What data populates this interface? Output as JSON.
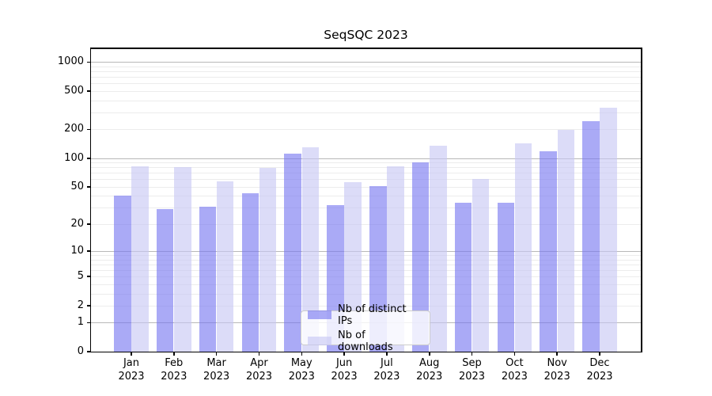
{
  "title": "SeqSQC 2023",
  "chart_data": {
    "type": "bar",
    "title": "SeqSQC 2023",
    "categories": [
      "Jan 2023",
      "Feb 2023",
      "Mar 2023",
      "Apr 2023",
      "May 2023",
      "Jun 2023",
      "Jul 2023",
      "Aug 2023",
      "Sep 2023",
      "Oct 2023",
      "Nov 2023",
      "Dec 2023"
    ],
    "series": [
      {
        "name": "Nb of distinct IPs",
        "color": "rgba(118,118,240,0.62)",
        "values": [
          40,
          29,
          31,
          43,
          112,
          32,
          51,
          91,
          34,
          34,
          119,
          245
        ]
      },
      {
        "name": "Nb of downloads",
        "color": "rgba(199,199,244,0.62)",
        "values": [
          83,
          80,
          57,
          79,
          130,
          56,
          83,
          134,
          61,
          142,
          196,
          337
        ]
      }
    ],
    "xlabel": "",
    "ylabel": "",
    "yscale": "log10(value+1)",
    "yticks": [
      0,
      1,
      2,
      5,
      10,
      20,
      50,
      100,
      200,
      500,
      1000
    ],
    "grid_major": [
      1,
      10,
      100,
      1000
    ],
    "grid_minor_bases": [
      1,
      10,
      100
    ],
    "ylim": [
      0,
      1430
    ],
    "grid": "on",
    "legend_position": "lower center"
  },
  "colors": {
    "minor_grid": "#ececec",
    "major_grid": "#b8b8b8",
    "spine": "#000000",
    "text": "#000000",
    "legend_border": "#cccccc"
  }
}
